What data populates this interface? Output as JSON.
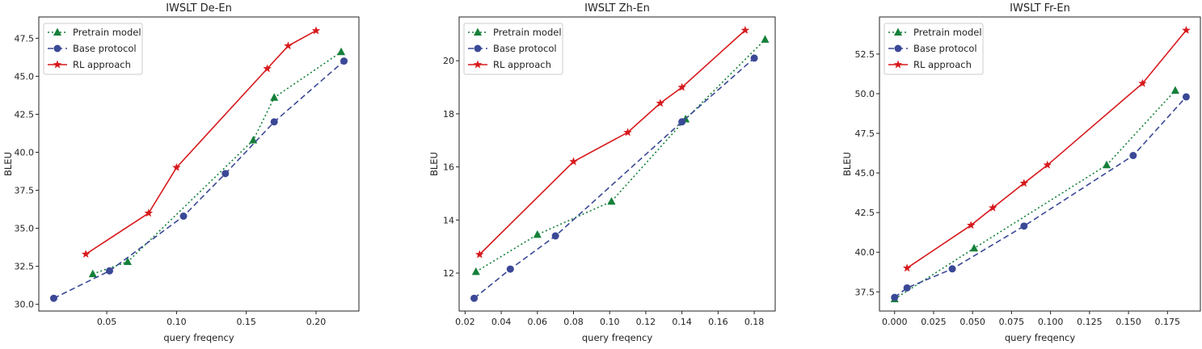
{
  "colors": {
    "pretrain": "#15803a",
    "base": "#3a4896",
    "rl": "#d7191c"
  },
  "chart_data": [
    {
      "type": "line",
      "title": "IWSLT De-En",
      "xlabel": "query freqency",
      "ylabel": "BLEU",
      "xlim": [
        0.0013,
        0.2307
      ],
      "ylim": [
        29.56,
        48.9
      ],
      "xticks": [
        0.05,
        0.1,
        0.15,
        0.2
      ],
      "xtick_labels": [
        "0.05",
        "0.10",
        "0.15",
        "0.20"
      ],
      "yticks": [
        30.0,
        32.5,
        35.0,
        37.5,
        40.0,
        42.5,
        45.0,
        47.5
      ],
      "ytick_labels": [
        "30.0",
        "32.5",
        "35.0",
        "37.5",
        "40.0",
        "42.5",
        "45.0",
        "47.5"
      ],
      "legend": "top-left",
      "series": [
        {
          "name": "Pretrain model",
          "key": "pretrain",
          "marker": "triangle",
          "style": "dotted",
          "x": [
            0.04,
            0.065,
            0.155,
            0.17,
            0.218
          ],
          "y": [
            32.0,
            32.8,
            40.8,
            43.6,
            46.6
          ]
        },
        {
          "name": "Base protocol",
          "key": "base",
          "marker": "circle",
          "style": "dashed",
          "x": [
            0.012,
            0.052,
            0.105,
            0.135,
            0.17,
            0.22
          ],
          "y": [
            30.4,
            32.2,
            35.8,
            38.6,
            42.0,
            46.0
          ]
        },
        {
          "name": "RL approach",
          "key": "rl",
          "marker": "star",
          "style": "solid",
          "x": [
            0.035,
            0.08,
            0.1,
            0.165,
            0.18,
            0.2
          ],
          "y": [
            33.3,
            36.0,
            39.0,
            45.5,
            47.0,
            48.0
          ]
        }
      ]
    },
    {
      "type": "line",
      "title": "IWSLT Zh-En",
      "xlabel": "query freqency",
      "ylabel": "BLEU",
      "xlim": [
        0.0167,
        0.1916
      ],
      "ylim": [
        10.57,
        21.65
      ],
      "xticks": [
        0.02,
        0.04,
        0.06,
        0.08,
        0.1,
        0.12,
        0.14,
        0.16,
        0.18
      ],
      "xtick_labels": [
        "0.02",
        "0.04",
        "0.06",
        "0.08",
        "0.10",
        "0.12",
        "0.14",
        "0.16",
        "0.18"
      ],
      "yticks": [
        12,
        14,
        16,
        18,
        20
      ],
      "ytick_labels": [
        "12",
        "14",
        "16",
        "18",
        "20"
      ],
      "legend": "top-left",
      "series": [
        {
          "name": "Pretrain model",
          "key": "pretrain",
          "marker": "triangle",
          "style": "dotted",
          "x": [
            0.026,
            0.06,
            0.101,
            0.142,
            0.186
          ],
          "y": [
            12.05,
            13.45,
            14.7,
            17.8,
            20.8
          ]
        },
        {
          "name": "Base protocol",
          "key": "base",
          "marker": "circle",
          "style": "dashed",
          "x": [
            0.025,
            0.045,
            0.07,
            0.14,
            0.18
          ],
          "y": [
            11.05,
            12.15,
            13.4,
            17.7,
            20.1
          ]
        },
        {
          "name": "RL approach",
          "key": "rl",
          "marker": "star",
          "style": "solid",
          "x": [
            0.028,
            0.08,
            0.11,
            0.128,
            0.14,
            0.175
          ],
          "y": [
            12.7,
            16.2,
            17.3,
            18.4,
            19.0,
            21.15
          ]
        }
      ]
    },
    {
      "type": "line",
      "title": "IWSLT Fr-En",
      "xlabel": "query freqency",
      "ylabel": "BLEU",
      "xlim": [
        -0.0097,
        0.1961
      ],
      "ylim": [
        36.29,
        54.84
      ],
      "xticks": [
        0.0,
        0.025,
        0.05,
        0.075,
        0.1,
        0.125,
        0.15,
        0.175
      ],
      "xtick_labels": [
        "0.000",
        "0.025",
        "0.050",
        "0.075",
        "0.100",
        "0.125",
        "0.150",
        "0.175"
      ],
      "yticks": [
        37.5,
        40.0,
        42.5,
        45.0,
        47.5,
        50.0,
        52.5
      ],
      "ytick_labels": [
        "37.5",
        "40.0",
        "42.5",
        "45.0",
        "47.5",
        "50.0",
        "52.5"
      ],
      "legend": "top-left",
      "series": [
        {
          "name": "Pretrain model",
          "key": "pretrain",
          "marker": "triangle",
          "style": "dotted",
          "x": [
            0.0,
            0.051,
            0.136,
            0.18
          ],
          "y": [
            37.05,
            40.25,
            45.5,
            50.2
          ]
        },
        {
          "name": "Base protocol",
          "key": "base",
          "marker": "circle",
          "style": "dashed",
          "x": [
            0.0,
            0.008,
            0.037,
            0.083,
            0.153,
            0.187
          ],
          "y": [
            37.15,
            37.75,
            38.95,
            41.65,
            46.1,
            49.8
          ]
        },
        {
          "name": "RL approach",
          "key": "rl",
          "marker": "star",
          "style": "solid",
          "x": [
            0.008,
            0.049,
            0.063,
            0.083,
            0.098,
            0.159,
            0.187
          ],
          "y": [
            39.0,
            41.7,
            42.8,
            44.35,
            45.5,
            50.65,
            54.0
          ]
        }
      ]
    }
  ]
}
